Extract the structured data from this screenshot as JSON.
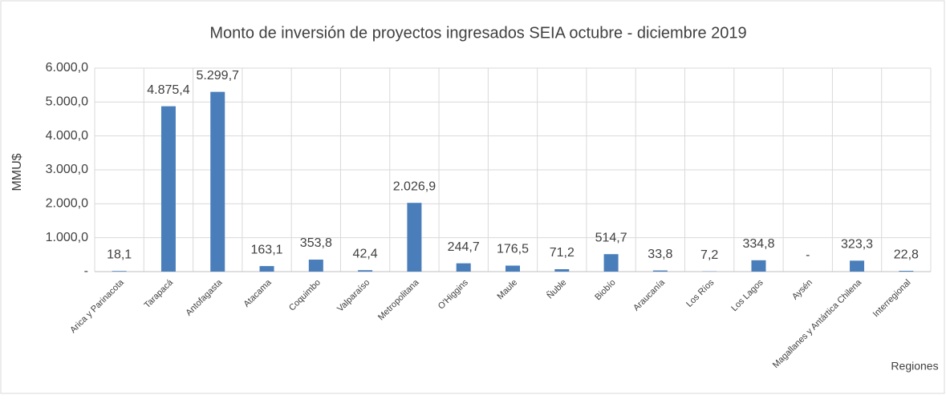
{
  "chart_data": {
    "type": "bar",
    "title": "Monto de inversión de proyectos ingresados SEIA octubre - diciembre 2019",
    "y_label": "MMU$",
    "x_label": "Regiones",
    "categories": [
      "Arica y Parinacota",
      "Tarapacá",
      "Antofagasta",
      "Atacama",
      "Coquimbo",
      "Valparaíso",
      "Metropolitana",
      "O'Higgins",
      "Maule",
      "Ñuble",
      "Biobío",
      "Araucanía",
      "Los Ríos",
      "Los Lagos",
      "Aysén",
      "Magallanes y Antártica Chilena",
      "Interregional"
    ],
    "values": [
      18.1,
      4875.4,
      5299.7,
      163.1,
      353.8,
      42.4,
      2026.9,
      244.7,
      176.5,
      71.2,
      514.7,
      33.8,
      7.2,
      334.8,
      0,
      323.3,
      22.8
    ],
    "value_labels": [
      "18,1",
      "4.875,4",
      "5.299,7",
      "163,1",
      "353,8",
      "42,4",
      "2.026,9",
      "244,7",
      "176,5",
      "71,2",
      "514,7",
      "33,8",
      "7,2",
      "334,8",
      "-",
      "323,3",
      "22,8"
    ],
    "color": "#4a7ebb",
    "ylim": [
      0,
      6000
    ],
    "yticks": [
      {
        "value": 0,
        "label": "-"
      },
      {
        "value": 1000,
        "label": "1.000,0"
      },
      {
        "value": 2000,
        "label": "2.000,0"
      },
      {
        "value": 3000,
        "label": "3.000,0"
      },
      {
        "value": 4000,
        "label": "4.000,0"
      },
      {
        "value": 5000,
        "label": "5.000,0"
      },
      {
        "value": 6000,
        "label": "6.000,0"
      }
    ],
    "grid": true
  }
}
